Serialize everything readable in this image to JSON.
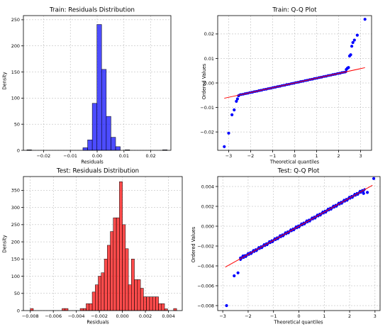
{
  "chart_data": [
    {
      "type": "bar",
      "title": "Train: Residuals Distribution",
      "xlabel": "Residuals",
      "ylabel": "Density",
      "color": "#0000ff",
      "xlim": [
        -0.0275,
        0.0275
      ],
      "ylim": [
        0,
        258
      ],
      "xticks": [
        -0.02,
        -0.01,
        0.0,
        0.01,
        0.02
      ],
      "xtick_labels": [
        "−0.02",
        "−0.01",
        "0.00",
        "0.01",
        "0.02"
      ],
      "yticks": [
        0,
        50,
        100,
        150,
        200,
        250
      ],
      "grid": true,
      "bin_width": 0.00174,
      "bin_starts": [
        -0.0262,
        -0.0053,
        -0.00356,
        -0.00182,
        -8e-05,
        0.00166,
        0.0034,
        0.00514,
        0.00688,
        0.0104,
        0.0244
      ],
      "values": [
        1,
        5,
        20,
        90,
        241,
        155,
        65,
        25,
        7,
        1,
        1
      ]
    },
    {
      "type": "scatter",
      "title": "Train: Q-Q Plot",
      "xlabel": "Theoretical quantiles",
      "ylabel": "Ordered Values",
      "point_color": "#0000ff",
      "line_color": "#ff0000",
      "xlim": [
        -3.5,
        3.5
      ],
      "ylim": [
        -0.0275,
        0.0275
      ],
      "xticks": [
        -3,
        -2,
        -1,
        0,
        1,
        2,
        3
      ],
      "xtick_labels": [
        "−3",
        "−2",
        "−1",
        "0",
        "1",
        "2",
        "3"
      ],
      "yticks": [
        -0.02,
        -0.01,
        0.0,
        0.01,
        0.02
      ],
      "ytick_labels": [
        "−0.02",
        "−0.01",
        "0.00",
        "0.01",
        "0.02"
      ],
      "grid": true,
      "fit_line": {
        "slope": 0.00195,
        "intercept": 0.0
      },
      "points": {
        "x": [
          -3.2,
          -3.0,
          -2.85,
          -2.75,
          -2.65,
          -2.6,
          -2.55,
          2.35,
          2.4,
          2.45,
          2.5,
          2.55,
          2.6,
          2.65,
          2.72,
          2.85,
          3.2
        ],
        "y": [
          -0.026,
          -0.0205,
          -0.013,
          -0.011,
          -0.0075,
          -0.0065,
          -0.0052,
          0.0055,
          0.006,
          0.0063,
          0.011,
          0.0115,
          0.015,
          0.0165,
          0.0175,
          0.0195,
          0.026
        ]
      },
      "band": {
        "x_from": -2.55,
        "x_to": 2.35
      }
    },
    {
      "type": "bar",
      "title": "Test: Residuals Distribution",
      "xlabel": "Residuals",
      "ylabel": "Density",
      "color": "#ff0000",
      "xlim": [
        -0.0086,
        0.0052
      ],
      "ylim": [
        0,
        390
      ],
      "xticks": [
        -0.008,
        -0.006,
        -0.004,
        -0.002,
        0.0,
        0.002,
        0.004
      ],
      "xtick_labels": [
        "−0.008",
        "−0.006",
        "−0.004",
        "−0.002",
        "0.000",
        "0.002",
        "0.004"
      ],
      "yticks": [
        0,
        50,
        100,
        150,
        200,
        250,
        300,
        350
      ],
      "grid": true,
      "bin_width": 0.000262,
      "bin_starts": [
        -0.008,
        -0.00524,
        -0.00498,
        -0.00367,
        -0.00341,
        -0.00315,
        -0.00288,
        -0.00262,
        -0.00236,
        -0.0021,
        -0.00184,
        -0.00157,
        -0.00131,
        -0.00105,
        -0.00079,
        -0.00052,
        -0.00026,
        0.0,
        0.00026,
        0.00052,
        0.00078,
        0.00105,
        0.00131,
        0.00157,
        0.00183,
        0.0021,
        0.00236,
        0.00262,
        0.00288,
        0.00314,
        0.0034,
        0.00367,
        0.00445
      ],
      "values": [
        6,
        6,
        6,
        6,
        6,
        20,
        20,
        54,
        75,
        100,
        110,
        150,
        190,
        230,
        270,
        270,
        375,
        250,
        180,
        75,
        150,
        90,
        90,
        65,
        40,
        40,
        40,
        40,
        40,
        20,
        20,
        5,
        6
      ]
    },
    {
      "type": "scatter",
      "title": "Test: Q-Q Plot",
      "xlabel": "Theoretical quantiles",
      "ylabel": "Ordered Values",
      "point_color": "#0000ff",
      "line_color": "#ff0000",
      "xlim": [
        -3.2,
        3.2
      ],
      "ylim": [
        -0.0085,
        0.005
      ],
      "xticks": [
        -3,
        -2,
        -1,
        0,
        1,
        2,
        3
      ],
      "xtick_labels": [
        "−3",
        "−2",
        "−1",
        "0",
        "1",
        "2",
        "3"
      ],
      "yticks": [
        -0.008,
        -0.006,
        -0.004,
        -0.002,
        0.0,
        0.002,
        0.004
      ],
      "ytick_labels": [
        "−0.008",
        "−0.006",
        "−0.004",
        "−0.002",
        "0.000",
        "0.002",
        "0.004"
      ],
      "grid": true,
      "fit_line": {
        "slope": 0.00142,
        "intercept": 0.0
      },
      "points": {
        "x": [
          -2.85,
          -2.55,
          -2.4,
          -2.3,
          -2.2,
          2.55,
          2.7,
          2.95
        ],
        "y": [
          -0.008,
          -0.005,
          -0.0047,
          -0.0032,
          -0.003,
          0.0033,
          0.0034,
          0.0048
        ]
      },
      "band": {
        "x_from": -2.3,
        "x_to": 2.6
      }
    }
  ]
}
